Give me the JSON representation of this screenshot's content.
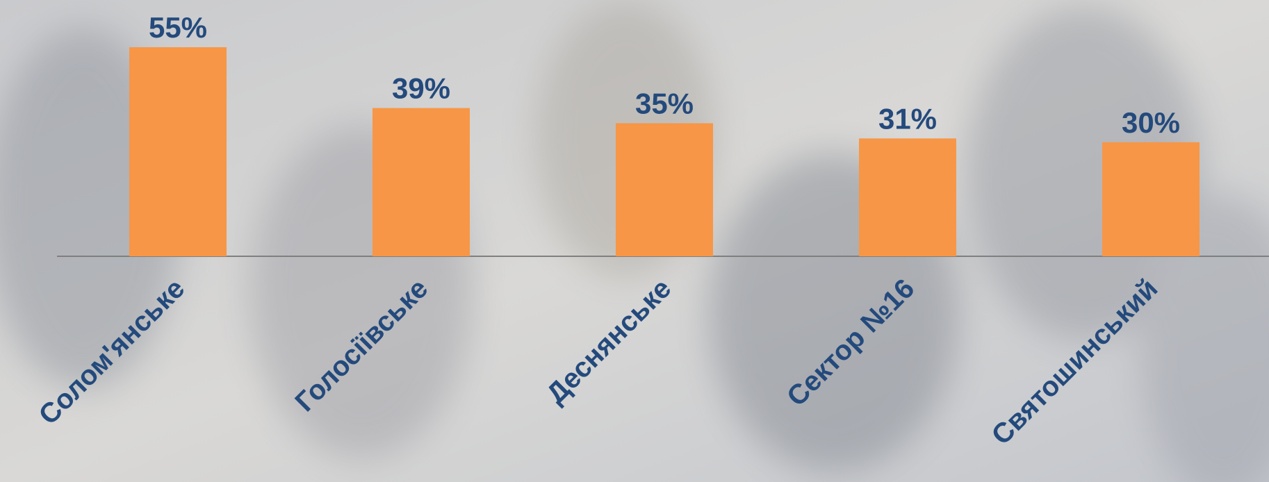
{
  "chart_data": {
    "type": "bar",
    "categories": [
      "Солом'янське",
      "Голосіївське",
      "Деснянське",
      "Сектор №16",
      "Святошинський"
    ],
    "values": [
      55,
      39,
      35,
      31,
      30
    ],
    "value_labels": [
      "55%",
      "39%",
      "35%",
      "31%",
      "30%"
    ],
    "color": "#f79646"
  }
}
